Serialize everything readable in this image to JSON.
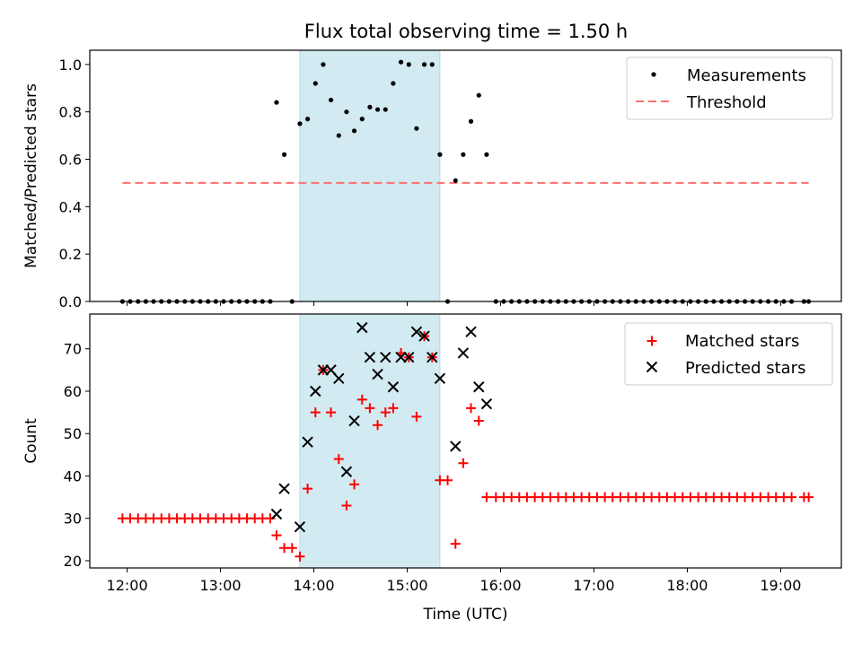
{
  "title": "Flux total observing time = 1.50 h",
  "colors": {
    "shade": "#add8e6",
    "threshold": "#ff6f6f",
    "matched": "#ff0000",
    "predicted": "#000000",
    "measure": "#000000"
  },
  "chart_data": [
    {
      "type": "scatter",
      "panel": "top",
      "ylabel": "Matched/Predicted stars",
      "xlim": [
        11.6,
        19.65
      ],
      "ylim": [
        0,
        1.06
      ],
      "yticks": [
        0.0,
        0.2,
        0.4,
        0.6,
        0.8,
        1.0
      ],
      "ytick_labels": [
        "0.0",
        "0.2",
        "0.4",
        "0.6",
        "0.8",
        "1.0"
      ],
      "shaded_span": [
        13.85,
        15.35
      ],
      "grid": false,
      "legend_position": "top-right",
      "threshold": {
        "name": "Threshold",
        "y": 0.5,
        "x_range": [
          11.95,
          19.3
        ]
      },
      "measurements": {
        "name": "Measurements",
        "x": [
          11.95,
          12.033,
          12.117,
          12.2,
          12.283,
          12.367,
          12.45,
          12.533,
          12.617,
          12.7,
          12.783,
          12.867,
          12.95,
          13.033,
          13.117,
          13.2,
          13.283,
          13.367,
          13.45,
          13.533,
          13.6,
          13.683,
          13.767,
          13.85,
          13.933,
          14.017,
          14.1,
          14.183,
          14.267,
          14.35,
          14.433,
          14.517,
          14.6,
          14.683,
          14.767,
          14.85,
          14.933,
          15.017,
          15.1,
          15.183,
          15.267,
          15.35,
          15.433,
          15.517,
          15.6,
          15.683,
          15.767,
          15.85,
          15.95,
          16.033,
          16.117,
          16.2,
          16.283,
          16.367,
          16.45,
          16.533,
          16.617,
          16.7,
          16.783,
          16.867,
          16.95,
          17.033,
          17.117,
          17.2,
          17.283,
          17.367,
          17.45,
          17.533,
          17.617,
          17.7,
          17.783,
          17.867,
          17.95,
          18.033,
          18.117,
          18.2,
          18.283,
          18.367,
          18.45,
          18.533,
          18.617,
          18.7,
          18.783,
          18.867,
          18.95,
          19.033,
          19.117,
          19.25,
          19.3
        ],
        "y": [
          0,
          0,
          0,
          0,
          0,
          0,
          0,
          0,
          0,
          0,
          0,
          0,
          0,
          0,
          0,
          0,
          0,
          0,
          0,
          0,
          0.84,
          0.62,
          0,
          0.75,
          0.77,
          0.92,
          1.0,
          0.85,
          0.7,
          0.8,
          0.72,
          0.77,
          0.82,
          0.81,
          0.81,
          0.92,
          1.01,
          1.0,
          0.73,
          1.0,
          1.0,
          0.62,
          0,
          0.51,
          0.62,
          0.76,
          0.87,
          0.62,
          0,
          0,
          0,
          0,
          0,
          0,
          0,
          0,
          0,
          0,
          0,
          0,
          0,
          0,
          0,
          0,
          0,
          0,
          0,
          0,
          0,
          0,
          0,
          0,
          0,
          0,
          0,
          0,
          0,
          0,
          0,
          0,
          0,
          0,
          0,
          0,
          0,
          0,
          0,
          0,
          0
        ]
      }
    },
    {
      "type": "scatter",
      "panel": "bottom",
      "xlabel": "Time (UTC)",
      "ylabel": "Count",
      "xlim": [
        11.6,
        19.65
      ],
      "ylim": [
        18.3,
        78.2
      ],
      "yticks": [
        20,
        30,
        40,
        50,
        60,
        70
      ],
      "ytick_labels": [
        "20",
        "30",
        "40",
        "50",
        "60",
        "70"
      ],
      "xticks": [
        12,
        13,
        14,
        15,
        16,
        17,
        18,
        19
      ],
      "xtick_labels": [
        "12:00",
        "13:00",
        "14:00",
        "15:00",
        "16:00",
        "17:00",
        "18:00",
        "19:00"
      ],
      "shaded_span": [
        13.85,
        15.35
      ],
      "grid": false,
      "legend_position": "top-right",
      "series": [
        {
          "name": "Matched stars",
          "marker": "plus",
          "x": [
            11.95,
            12.033,
            12.117,
            12.2,
            12.283,
            12.367,
            12.45,
            12.533,
            12.617,
            12.7,
            12.783,
            12.867,
            12.95,
            13.033,
            13.117,
            13.2,
            13.283,
            13.367,
            13.45,
            13.533,
            13.6,
            13.683,
            13.767,
            13.85,
            13.933,
            14.017,
            14.1,
            14.183,
            14.267,
            14.35,
            14.433,
            14.517,
            14.6,
            14.683,
            14.767,
            14.85,
            14.933,
            15.017,
            15.1,
            15.183,
            15.267,
            15.35,
            15.433,
            15.517,
            15.6,
            15.683,
            15.767,
            15.85,
            15.95,
            16.033,
            16.117,
            16.2,
            16.283,
            16.367,
            16.45,
            16.533,
            16.617,
            16.7,
            16.783,
            16.867,
            16.95,
            17.033,
            17.117,
            17.2,
            17.283,
            17.367,
            17.45,
            17.533,
            17.617,
            17.7,
            17.783,
            17.867,
            17.95,
            18.033,
            18.117,
            18.2,
            18.283,
            18.367,
            18.45,
            18.533,
            18.617,
            18.7,
            18.783,
            18.867,
            18.95,
            19.033,
            19.117,
            19.25,
            19.3
          ],
          "values": [
            30,
            30,
            30,
            30,
            30,
            30,
            30,
            30,
            30,
            30,
            30,
            30,
            30,
            30,
            30,
            30,
            30,
            30,
            30,
            30,
            26,
            23,
            23,
            21,
            37,
            55,
            65,
            55,
            44,
            33,
            38,
            58,
            56,
            52,
            55,
            56,
            69,
            68,
            54,
            73,
            68,
            39,
            39,
            24,
            43,
            56,
            53,
            35,
            35,
            35,
            35,
            35,
            35,
            35,
            35,
            35,
            35,
            35,
            35,
            35,
            35,
            35,
            35,
            35,
            35,
            35,
            35,
            35,
            35,
            35,
            35,
            35,
            35,
            35,
            35,
            35,
            35,
            35,
            35,
            35,
            35,
            35,
            35,
            35,
            35,
            35,
            35,
            35,
            35
          ]
        },
        {
          "name": "Predicted stars",
          "marker": "x",
          "x": [
            13.6,
            13.683,
            13.85,
            13.933,
            14.017,
            14.1,
            14.183,
            14.267,
            14.35,
            14.433,
            14.517,
            14.6,
            14.683,
            14.767,
            14.85,
            14.933,
            15.017,
            15.1,
            15.183,
            15.267,
            15.35,
            15.517,
            15.6,
            15.683,
            15.767,
            15.85
          ],
          "values": [
            31,
            37,
            28,
            48,
            60,
            65,
            65,
            63,
            41,
            53,
            75,
            68,
            64,
            68,
            61,
            68,
            68,
            74,
            73,
            68,
            63,
            47,
            69,
            74,
            61,
            57
          ]
        }
      ]
    }
  ]
}
